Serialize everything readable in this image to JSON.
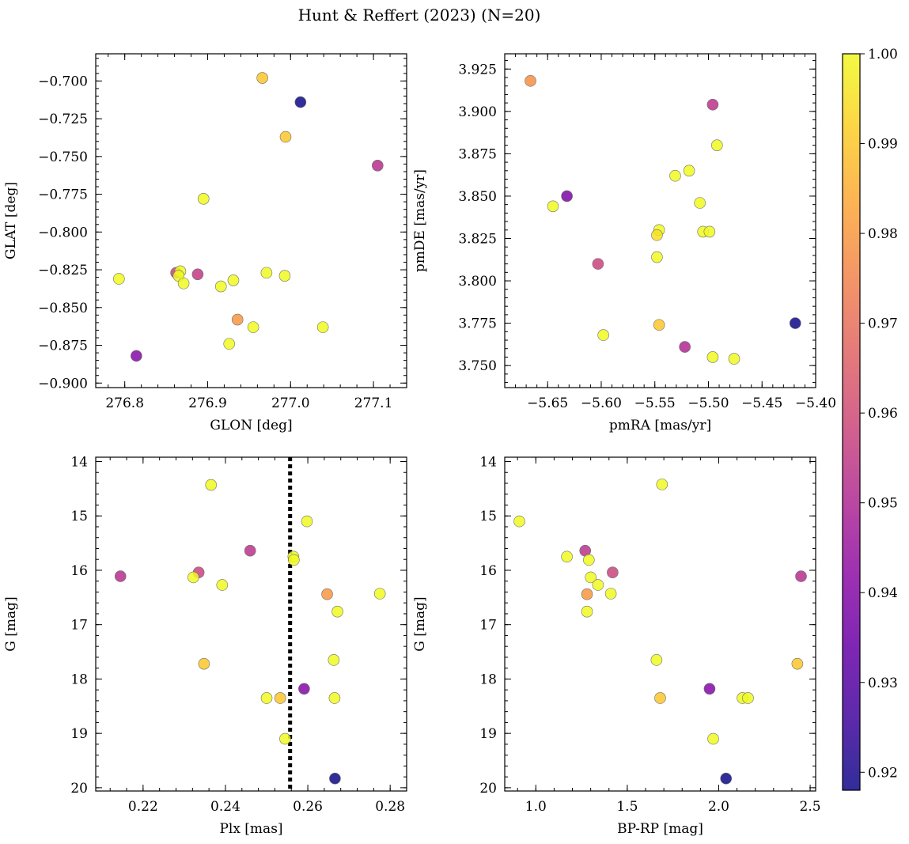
{
  "figure": {
    "title": "Hunt & Reffert (2023) (N=20)"
  },
  "colorbar": {
    "cmap": "plasma",
    "min": 0.918,
    "max": 1.0,
    "ticks": [
      0.92,
      0.93,
      0.94,
      0.95,
      0.96,
      0.97,
      0.98,
      0.99,
      1.0
    ],
    "tick_labels": [
      "0.92",
      "0.93",
      "0.94",
      "0.95",
      "0.96",
      "0.97",
      "0.98",
      "0.99",
      "1.00"
    ]
  },
  "chart_data": [
    {
      "type": "scatter",
      "id": "glon-glat",
      "xlabel": "GLON [deg]",
      "ylabel": "GLAT [deg]",
      "xlim": [
        276.765,
        277.14
      ],
      "ylim": [
        -0.903,
        -0.682
      ],
      "y_inverted": false,
      "xticks": [
        276.8,
        276.9,
        277.0,
        277.1
      ],
      "xtick_labels": [
        "276.8",
        "276.9",
        "277.0",
        "277.1"
      ],
      "yticks": [
        -0.9,
        -0.875,
        -0.85,
        -0.825,
        -0.8,
        -0.775,
        -0.75,
        -0.725,
        -0.7
      ],
      "ytick_labels": [
        "−0.900",
        "−0.875",
        "−0.850",
        "−0.825",
        "−0.800",
        "−0.775",
        "−0.750",
        "−0.725",
        "−0.700"
      ],
      "points": [
        {
          "x": 276.966,
          "y": -0.698,
          "c": 0.99
        },
        {
          "x": 277.012,
          "y": -0.714,
          "c": 0.918
        },
        {
          "x": 276.994,
          "y": -0.737,
          "c": 0.99
        },
        {
          "x": 277.105,
          "y": -0.756,
          "c": 0.952
        },
        {
          "x": 276.895,
          "y": -0.778,
          "c": 1.0
        },
        {
          "x": 276.793,
          "y": -0.831,
          "c": 1.0
        },
        {
          "x": 276.862,
          "y": -0.827,
          "c": 0.957
        },
        {
          "x": 276.867,
          "y": -0.826,
          "c": 1.0
        },
        {
          "x": 276.865,
          "y": -0.829,
          "c": 1.0
        },
        {
          "x": 276.871,
          "y": -0.834,
          "c": 1.0
        },
        {
          "x": 276.888,
          "y": -0.828,
          "c": 0.955
        },
        {
          "x": 276.916,
          "y": -0.836,
          "c": 1.0
        },
        {
          "x": 276.931,
          "y": -0.832,
          "c": 1.0
        },
        {
          "x": 276.971,
          "y": -0.827,
          "c": 1.0
        },
        {
          "x": 276.993,
          "y": -0.829,
          "c": 1.0
        },
        {
          "x": 276.936,
          "y": -0.858,
          "c": 0.98
        },
        {
          "x": 276.955,
          "y": -0.863,
          "c": 1.0
        },
        {
          "x": 277.039,
          "y": -0.863,
          "c": 1.0
        },
        {
          "x": 276.926,
          "y": -0.874,
          "c": 1.0
        },
        {
          "x": 276.814,
          "y": -0.882,
          "c": 0.94
        }
      ]
    },
    {
      "type": "scatter",
      "id": "pmra-pmde",
      "xlabel": "pmRA [mas/yr]",
      "ylabel": "pmDE [mas/yr]",
      "xlim": [
        -5.69,
        -5.4
      ],
      "ylim": [
        3.737,
        3.934
      ],
      "y_inverted": false,
      "xticks": [
        -5.65,
        -5.6,
        -5.55,
        -5.5,
        -5.45,
        -5.4
      ],
      "xtick_labels": [
        "−5.65",
        "−5.60",
        "−5.55",
        "−5.50",
        "−5.45",
        "−5.40"
      ],
      "yticks": [
        3.75,
        3.775,
        3.8,
        3.825,
        3.85,
        3.875,
        3.9,
        3.925
      ],
      "ytick_labels": [
        "3.750",
        "3.775",
        "3.800",
        "3.825",
        "3.850",
        "3.875",
        "3.900",
        "3.925"
      ],
      "points": [
        {
          "x": -5.666,
          "y": 3.918,
          "c": 0.978
        },
        {
          "x": -5.496,
          "y": 3.904,
          "c": 0.953
        },
        {
          "x": -5.492,
          "y": 3.88,
          "c": 1.0
        },
        {
          "x": -5.518,
          "y": 3.865,
          "c": 1.0
        },
        {
          "x": -5.531,
          "y": 3.862,
          "c": 1.0
        },
        {
          "x": -5.508,
          "y": 3.846,
          "c": 1.0
        },
        {
          "x": -5.632,
          "y": 3.85,
          "c": 0.938
        },
        {
          "x": -5.645,
          "y": 3.844,
          "c": 1.0
        },
        {
          "x": -5.546,
          "y": 3.83,
          "c": 1.0
        },
        {
          "x": -5.548,
          "y": 3.827,
          "c": 0.995
        },
        {
          "x": -5.505,
          "y": 3.829,
          "c": 1.0
        },
        {
          "x": -5.499,
          "y": 3.829,
          "c": 1.0
        },
        {
          "x": -5.548,
          "y": 3.814,
          "c": 1.0
        },
        {
          "x": -5.603,
          "y": 3.81,
          "c": 0.958
        },
        {
          "x": -5.546,
          "y": 3.774,
          "c": 0.99
        },
        {
          "x": -5.598,
          "y": 3.768,
          "c": 1.0
        },
        {
          "x": -5.419,
          "y": 3.775,
          "c": 0.918
        },
        {
          "x": -5.522,
          "y": 3.761,
          "c": 0.95
        },
        {
          "x": -5.496,
          "y": 3.755,
          "c": 1.0
        },
        {
          "x": -5.476,
          "y": 3.754,
          "c": 1.0
        }
      ]
    },
    {
      "type": "scatter",
      "id": "plx-g",
      "xlabel": "Plx [mas]",
      "ylabel": "G [mag]",
      "xlim": [
        0.2085,
        0.284
      ],
      "ylim": [
        20.06,
        13.92
      ],
      "y_inverted": true,
      "vline": {
        "x": 0.2557,
        "style": "dotted",
        "color": "#000000"
      },
      "xticks": [
        0.22,
        0.24,
        0.26,
        0.28
      ],
      "xtick_labels": [
        "0.22",
        "0.24",
        "0.26",
        "0.28"
      ],
      "yticks": [
        14,
        15,
        16,
        17,
        18,
        19,
        20
      ],
      "ytick_labels": [
        "14",
        "15",
        "16",
        "17",
        "18",
        "19",
        "20"
      ],
      "points": [
        {
          "x": 0.2365,
          "y": 14.43,
          "c": 1.0
        },
        {
          "x": 0.2598,
          "y": 15.1,
          "c": 1.0
        },
        {
          "x": 0.246,
          "y": 15.64,
          "c": 0.953
        },
        {
          "x": 0.2565,
          "y": 15.75,
          "c": 1.0
        },
        {
          "x": 0.2566,
          "y": 15.81,
          "c": 1.0
        },
        {
          "x": 0.2145,
          "y": 16.11,
          "c": 0.952
        },
        {
          "x": 0.2335,
          "y": 16.04,
          "c": 0.958
        },
        {
          "x": 0.2322,
          "y": 16.13,
          "c": 1.0
        },
        {
          "x": 0.2392,
          "y": 16.27,
          "c": 1.0
        },
        {
          "x": 0.2647,
          "y": 16.44,
          "c": 0.98
        },
        {
          "x": 0.2775,
          "y": 16.43,
          "c": 1.0
        },
        {
          "x": 0.2672,
          "y": 16.76,
          "c": 1.0
        },
        {
          "x": 0.2348,
          "y": 17.72,
          "c": 0.99
        },
        {
          "x": 0.2663,
          "y": 17.65,
          "c": 1.0
        },
        {
          "x": 0.2591,
          "y": 18.18,
          "c": 0.94
        },
        {
          "x": 0.25,
          "y": 18.35,
          "c": 1.0
        },
        {
          "x": 0.2533,
          "y": 18.35,
          "c": 0.99
        },
        {
          "x": 0.2665,
          "y": 18.35,
          "c": 1.0
        },
        {
          "x": 0.2545,
          "y": 19.1,
          "c": 1.0
        },
        {
          "x": 0.2666,
          "y": 19.83,
          "c": 0.918
        }
      ]
    },
    {
      "type": "scatter",
      "id": "bprp-g",
      "xlabel": "BP-RP [mag]",
      "ylabel": "G [mag]",
      "xlim": [
        0.83,
        2.53
      ],
      "ylim": [
        20.06,
        13.92
      ],
      "y_inverted": true,
      "xticks": [
        1.0,
        1.5,
        2.0,
        2.5
      ],
      "xtick_labels": [
        "1.0",
        "1.5",
        "2.0",
        "2.5"
      ],
      "yticks": [
        14,
        15,
        16,
        17,
        18,
        19,
        20
      ],
      "ytick_labels": [
        "14",
        "15",
        "16",
        "17",
        "18",
        "19",
        "20"
      ],
      "points": [
        {
          "x": 1.69,
          "y": 14.42,
          "c": 1.0
        },
        {
          "x": 0.91,
          "y": 15.1,
          "c": 1.0
        },
        {
          "x": 1.27,
          "y": 15.64,
          "c": 0.953
        },
        {
          "x": 1.17,
          "y": 15.75,
          "c": 1.0
        },
        {
          "x": 1.29,
          "y": 15.81,
          "c": 1.0
        },
        {
          "x": 1.42,
          "y": 16.04,
          "c": 0.958
        },
        {
          "x": 1.3,
          "y": 16.13,
          "c": 1.0
        },
        {
          "x": 1.34,
          "y": 16.27,
          "c": 1.0
        },
        {
          "x": 1.28,
          "y": 16.44,
          "c": 0.98
        },
        {
          "x": 1.41,
          "y": 16.43,
          "c": 1.0
        },
        {
          "x": 2.45,
          "y": 16.11,
          "c": 0.952
        },
        {
          "x": 1.28,
          "y": 16.76,
          "c": 1.0
        },
        {
          "x": 1.66,
          "y": 17.65,
          "c": 1.0
        },
        {
          "x": 2.43,
          "y": 17.72,
          "c": 0.99
        },
        {
          "x": 1.95,
          "y": 18.18,
          "c": 0.94
        },
        {
          "x": 1.68,
          "y": 18.35,
          "c": 0.99
        },
        {
          "x": 2.13,
          "y": 18.35,
          "c": 1.0
        },
        {
          "x": 2.16,
          "y": 18.35,
          "c": 1.0
        },
        {
          "x": 1.97,
          "y": 19.1,
          "c": 1.0
        },
        {
          "x": 2.04,
          "y": 19.83,
          "c": 0.918
        }
      ]
    }
  ]
}
